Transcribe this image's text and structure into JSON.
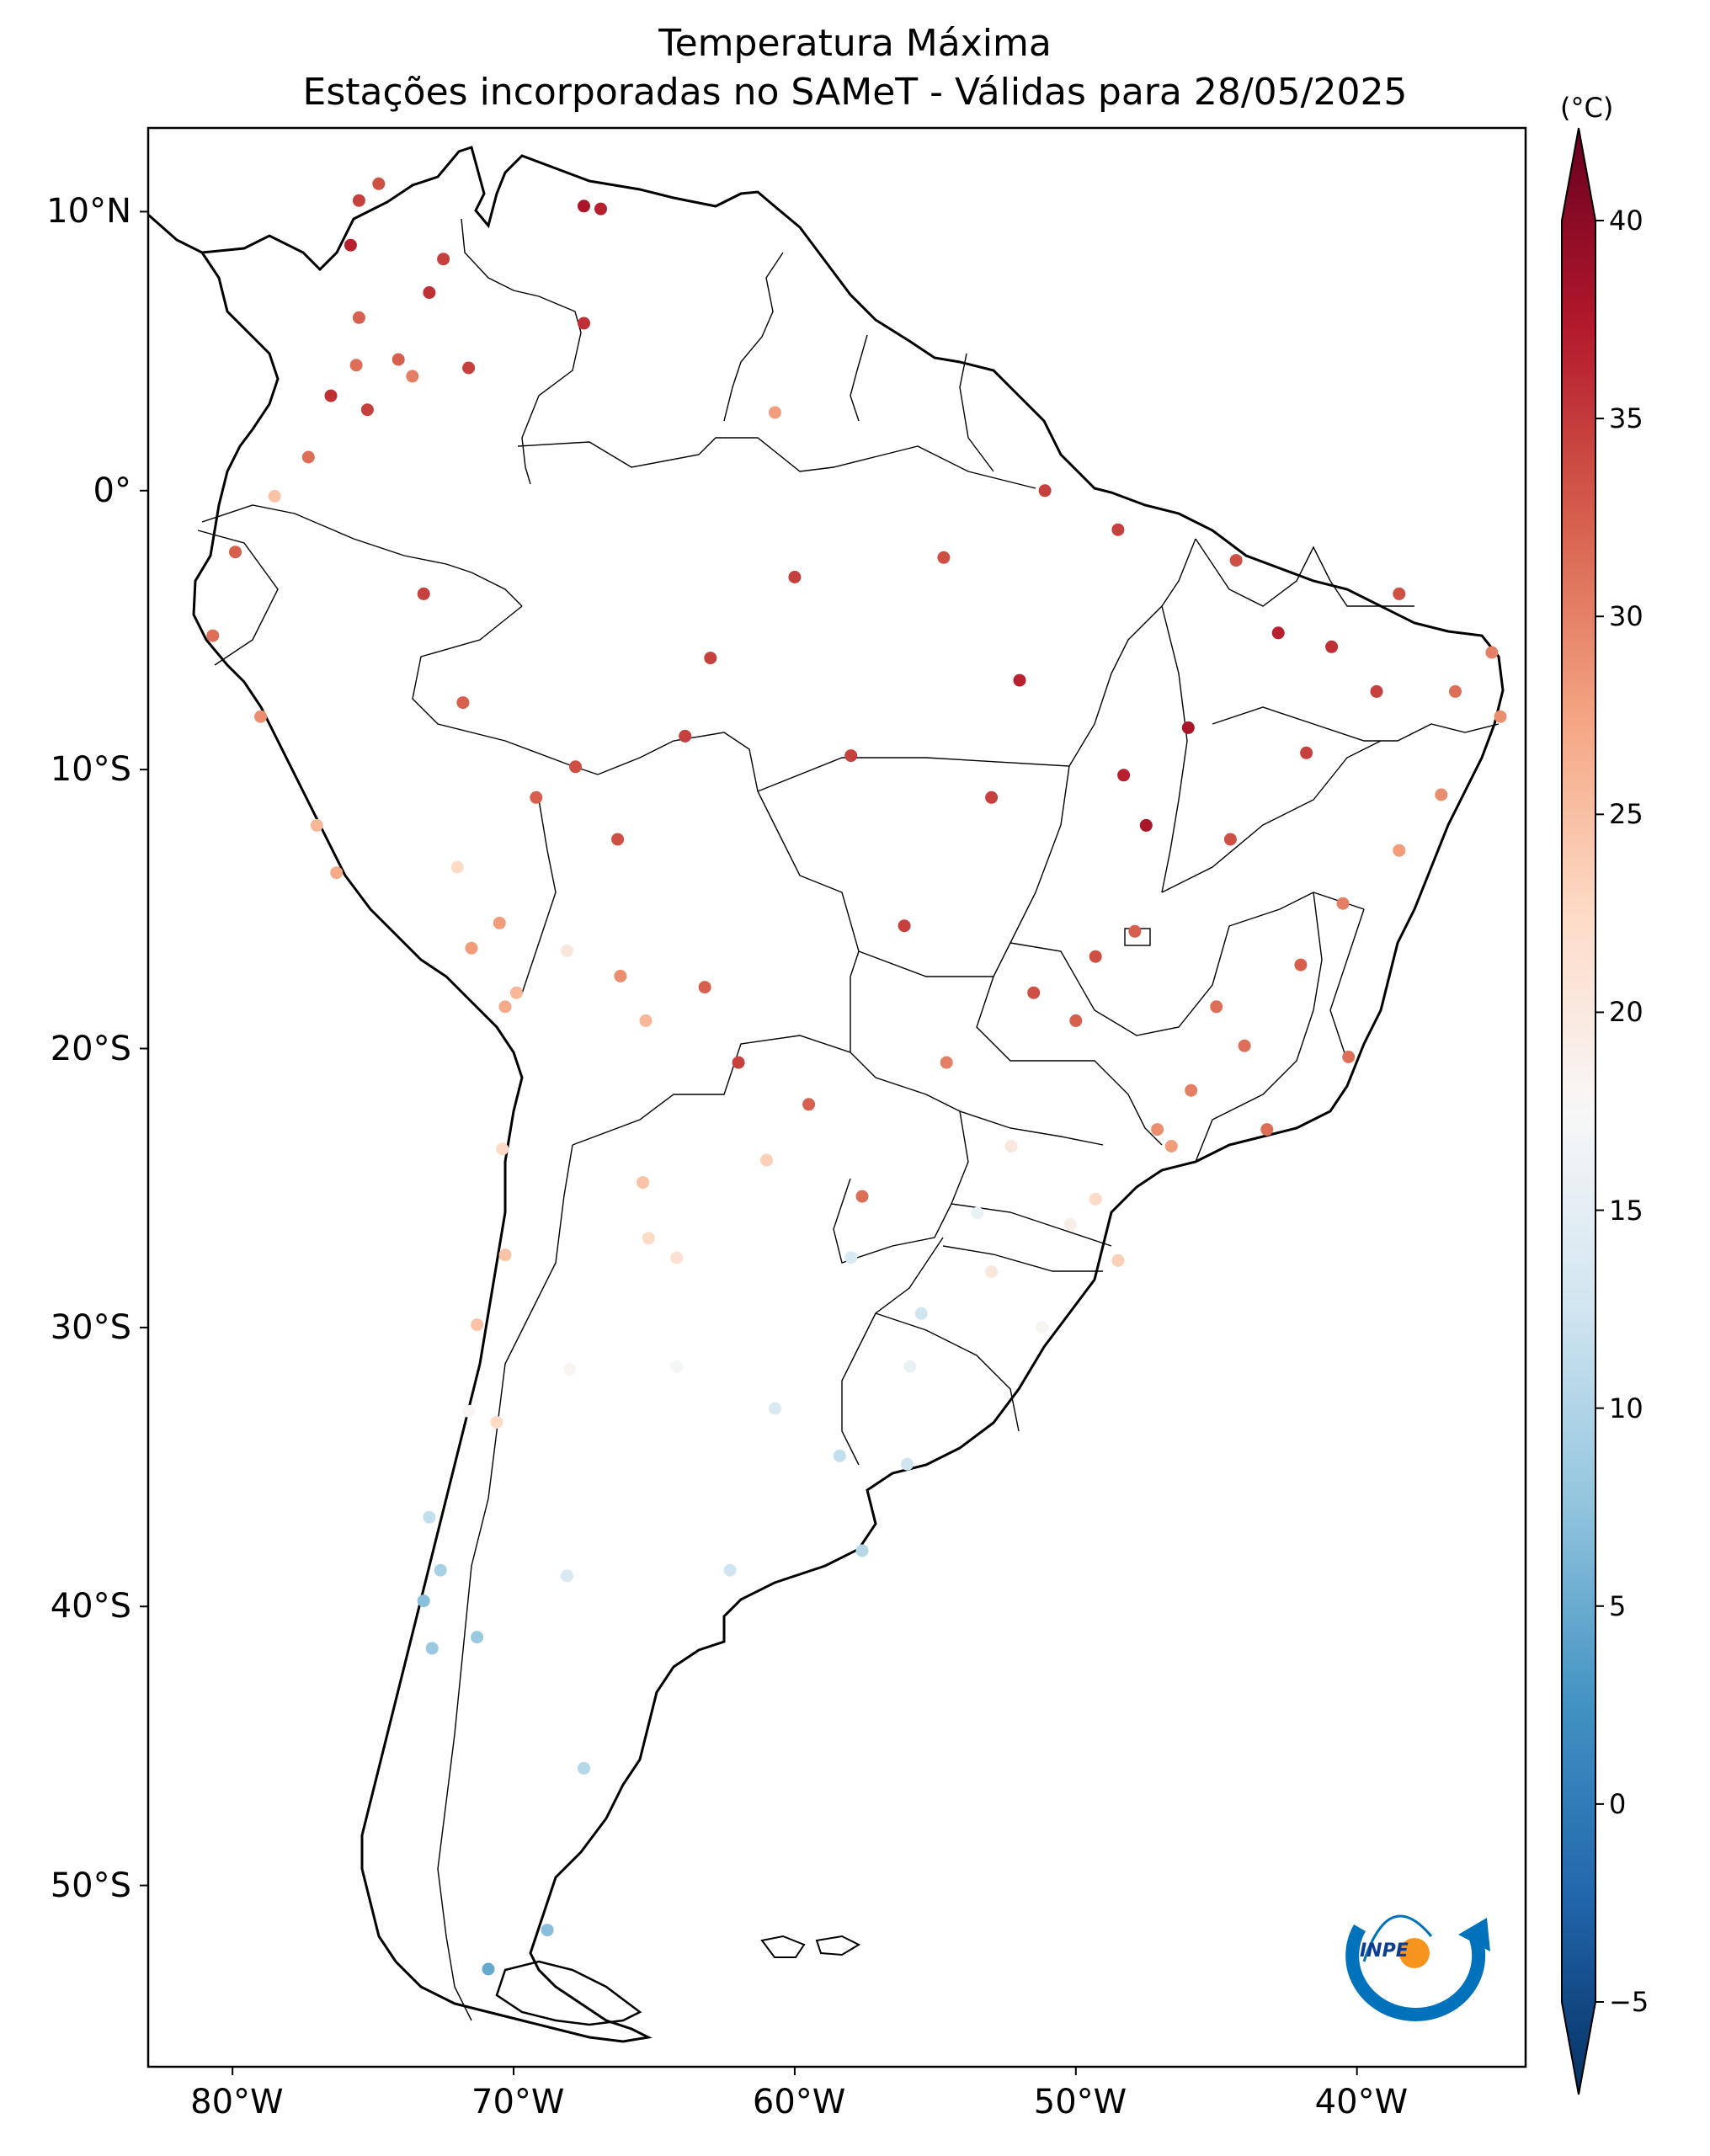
{
  "title": {
    "line1": "Temperatura Máxima",
    "line2": "Estações incorporadas no SAMeT - Válidas para 28/05/2025"
  },
  "map": {
    "lon_range": [
      -83,
      -34
    ],
    "lat_range": [
      -56.5,
      13
    ],
    "lon_ticks": [
      {
        "value": -80,
        "label": "80°W"
      },
      {
        "value": -70,
        "label": "70°W"
      },
      {
        "value": -60,
        "label": "60°W"
      },
      {
        "value": -50,
        "label": "50°W"
      },
      {
        "value": -40,
        "label": "40°W"
      }
    ],
    "lat_ticks": [
      {
        "value": 10,
        "label": "10°N"
      },
      {
        "value": 0,
        "label": "0°"
      },
      {
        "value": -10,
        "label": "10°S"
      },
      {
        "value": -20,
        "label": "20°S"
      },
      {
        "value": -30,
        "label": "30°S"
      },
      {
        "value": -40,
        "label": "40°S"
      },
      {
        "value": -50,
        "label": "50°S"
      }
    ]
  },
  "colorbar": {
    "unit": "(°C)",
    "min": -5,
    "max": 40,
    "ticks": [
      {
        "value": 40,
        "label": "40"
      },
      {
        "value": 35,
        "label": "35"
      },
      {
        "value": 30,
        "label": "30"
      },
      {
        "value": 25,
        "label": "25"
      },
      {
        "value": 20,
        "label": "20"
      },
      {
        "value": 15,
        "label": "15"
      },
      {
        "value": 10,
        "label": "10"
      },
      {
        "value": 5,
        "label": "5"
      },
      {
        "value": 0,
        "label": "0"
      },
      {
        "value": -5,
        "label": "-5"
      }
    ],
    "colors": [
      "#053061",
      "#2166ac",
      "#4393c3",
      "#92c5de",
      "#d1e5f0",
      "#f7f7f7",
      "#fddbc7",
      "#f4a582",
      "#d6604d",
      "#b2182b",
      "#67001f"
    ]
  },
  "logo": {
    "text": "INPE"
  },
  "stations": [
    {
      "lon": -75.5,
      "lat": 10.4,
      "t": 33
    },
    {
      "lon": -74.8,
      "lat": 11.0,
      "t": 32
    },
    {
      "lon": -67.5,
      "lat": 10.2,
      "t": 36
    },
    {
      "lon": -66.9,
      "lat": 10.1,
      "t": 35
    },
    {
      "lon": -72.5,
      "lat": 8.3,
      "t": 33
    },
    {
      "lon": -75.8,
      "lat": 8.8,
      "t": 35
    },
    {
      "lon": -73.0,
      "lat": 7.1,
      "t": 34
    },
    {
      "lon": -74.1,
      "lat": 4.7,
      "t": 31
    },
    {
      "lon": -75.5,
      "lat": 6.2,
      "t": 31
    },
    {
      "lon": -75.6,
      "lat": 4.5,
      "t": 30
    },
    {
      "lon": -73.6,
      "lat": 4.1,
      "t": 29
    },
    {
      "lon": -75.2,
      "lat": 2.9,
      "t": 33
    },
    {
      "lon": -76.5,
      "lat": 3.4,
      "t": 34
    },
    {
      "lon": -71.6,
      "lat": 4.4,
      "t": 33
    },
    {
      "lon": -67.5,
      "lat": 6.0,
      "t": 34
    },
    {
      "lon": -77.3,
      "lat": 1.2,
      "t": 30
    },
    {
      "lon": -78.5,
      "lat": -0.2,
      "t": 24
    },
    {
      "lon": -79.9,
      "lat": -2.2,
      "t": 31
    },
    {
      "lon": -80.7,
      "lat": -5.2,
      "t": 30
    },
    {
      "lon": -79.0,
      "lat": -8.1,
      "t": 28
    },
    {
      "lon": -77.0,
      "lat": -12.0,
      "t": 25
    },
    {
      "lon": -76.3,
      "lat": -13.7,
      "t": 26
    },
    {
      "lon": -73.2,
      "lat": -3.7,
      "t": 33
    },
    {
      "lon": -71.5,
      "lat": -16.4,
      "t": 27
    },
    {
      "lon": -70.3,
      "lat": -18.5,
      "t": 26
    },
    {
      "lon": -69.9,
      "lat": -18.0,
      "t": 25
    },
    {
      "lon": -72.0,
      "lat": -13.5,
      "t": 22
    },
    {
      "lon": -70.5,
      "lat": -15.5,
      "t": 27
    },
    {
      "lon": -68.1,
      "lat": -16.5,
      "t": 20
    },
    {
      "lon": -66.2,
      "lat": -17.4,
      "t": 28
    },
    {
      "lon": -63.2,
      "lat": -17.8,
      "t": 31
    },
    {
      "lon": -65.3,
      "lat": -19.0,
      "t": 25
    },
    {
      "lon": -65.4,
      "lat": -24.8,
      "t": 24
    },
    {
      "lon": -64.2,
      "lat": -27.5,
      "t": 21
    },
    {
      "lon": -65.2,
      "lat": -26.8,
      "t": 22
    },
    {
      "lon": -68.0,
      "lat": -31.5,
      "t": 18
    },
    {
      "lon": -64.2,
      "lat": -31.4,
      "t": 17
    },
    {
      "lon": -60.7,
      "lat": -32.9,
      "t": 14
    },
    {
      "lon": -58.4,
      "lat": -34.6,
      "t": 12
    },
    {
      "lon": -57.6,
      "lat": -38.0,
      "t": 11
    },
    {
      "lon": -62.3,
      "lat": -38.7,
      "t": 13
    },
    {
      "lon": -68.1,
      "lat": -38.9,
      "t": 14
    },
    {
      "lon": -71.3,
      "lat": -41.1,
      "t": 9
    },
    {
      "lon": -67.5,
      "lat": -45.8,
      "t": 11
    },
    {
      "lon": -68.8,
      "lat": -51.6,
      "t": 8
    },
    {
      "lon": -70.9,
      "lat": -53.0,
      "t": 6
    },
    {
      "lon": -70.6,
      "lat": -33.4,
      "t": 22
    },
    {
      "lon": -71.6,
      "lat": -33.0,
      "t": 18
    },
    {
      "lon": -73.0,
      "lat": -36.8,
      "t": 12
    },
    {
      "lon": -72.6,
      "lat": -38.7,
      "t": 10
    },
    {
      "lon": -73.2,
      "lat": -39.8,
      "t": 8
    },
    {
      "lon": -72.9,
      "lat": -41.5,
      "t": 9
    },
    {
      "lon": -71.3,
      "lat": -29.9,
      "t": 24
    },
    {
      "lon": -70.3,
      "lat": -27.4,
      "t": 24
    },
    {
      "lon": -70.4,
      "lat": -23.6,
      "t": 22
    },
    {
      "lon": -60.0,
      "lat": -3.1,
      "t": 33
    },
    {
      "lon": -63.9,
      "lat": -8.8,
      "t": 33
    },
    {
      "lon": -67.8,
      "lat": -9.9,
      "t": 32
    },
    {
      "lon": -54.7,
      "lat": -2.4,
      "t": 32
    },
    {
      "lon": -48.5,
      "lat": -1.4,
      "t": 33
    },
    {
      "lon": -60.7,
      "lat": 2.8,
      "t": 27
    },
    {
      "lon": -51.1,
      "lat": 0.0,
      "t": 33
    },
    {
      "lon": -44.3,
      "lat": -2.5,
      "t": 32
    },
    {
      "lon": -38.5,
      "lat": -3.7,
      "t": 32
    },
    {
      "lon": -35.2,
      "lat": -5.8,
      "t": 29
    },
    {
      "lon": -34.9,
      "lat": -8.1,
      "t": 28
    },
    {
      "lon": -38.5,
      "lat": -12.9,
      "t": 27
    },
    {
      "lon": -40.3,
      "lat": -20.3,
      "t": 30
    },
    {
      "lon": -43.2,
      "lat": -22.9,
      "t": 30
    },
    {
      "lon": -46.6,
      "lat": -23.5,
      "t": 27
    },
    {
      "lon": -49.3,
      "lat": -25.4,
      "t": 22
    },
    {
      "lon": -48.5,
      "lat": -27.6,
      "t": 23
    },
    {
      "lon": -51.2,
      "lat": -30.0,
      "t": 18
    },
    {
      "lon": -47.9,
      "lat": -15.8,
      "t": 31
    },
    {
      "lon": -49.3,
      "lat": -16.7,
      "t": 32
    },
    {
      "lon": -56.1,
      "lat": -15.6,
      "t": 33
    },
    {
      "lon": -54.6,
      "lat": -20.5,
      "t": 29
    },
    {
      "lon": -44.0,
      "lat": -19.9,
      "t": 30
    },
    {
      "lon": -48.3,
      "lat": -10.2,
      "t": 35
    },
    {
      "lon": -42.8,
      "lat": -5.1,
      "t": 35
    },
    {
      "lon": -41.8,
      "lat": -9.4,
      "t": 33
    },
    {
      "lon": -57.6,
      "lat": -25.3,
      "t": 30
    },
    {
      "lon": -56.0,
      "lat": -34.9,
      "t": 13
    },
    {
      "lon": -55.9,
      "lat": -31.4,
      "t": 16
    },
    {
      "lon": -53.0,
      "lat": -28.0,
      "t": 20
    },
    {
      "lon": -47.1,
      "lat": -22.9,
      "t": 28
    },
    {
      "lon": -45.9,
      "lat": -21.5,
      "t": 29
    },
    {
      "lon": -52.3,
      "lat": -23.5,
      "t": 20
    },
    {
      "lon": -53.5,
      "lat": -25.9,
      "t": 16
    },
    {
      "lon": -50.2,
      "lat": -26.3,
      "t": 19
    },
    {
      "lon": -55.5,
      "lat": -29.5,
      "t": 13
    },
    {
      "lon": -58.0,
      "lat": -27.5,
      "t": 14
    },
    {
      "lon": -61.0,
      "lat": -24.0,
      "t": 23
    },
    {
      "lon": -59.5,
      "lat": -22.0,
      "t": 31
    },
    {
      "lon": -62.0,
      "lat": -20.5,
      "t": 33
    },
    {
      "lon": -66.3,
      "lat": -12.5,
      "t": 32
    },
    {
      "lon": -69.2,
      "lat": -11.0,
      "t": 31
    },
    {
      "lon": -71.8,
      "lat": -7.6,
      "t": 31
    },
    {
      "lon": -63.0,
      "lat": -6.0,
      "t": 33
    },
    {
      "lon": -58.0,
      "lat": -9.5,
      "t": 33
    },
    {
      "lon": -53.0,
      "lat": -11.0,
      "t": 33
    },
    {
      "lon": -52.0,
      "lat": -6.8,
      "t": 35
    },
    {
      "lon": -46.0,
      "lat": -8.5,
      "t": 36
    },
    {
      "lon": -47.5,
      "lat": -12.0,
      "t": 36
    },
    {
      "lon": -44.5,
      "lat": -12.5,
      "t": 32
    },
    {
      "lon": -40.5,
      "lat": -14.8,
      "t": 29
    },
    {
      "lon": -42.0,
      "lat": -17.0,
      "t": 31
    },
    {
      "lon": -45.0,
      "lat": -18.5,
      "t": 30
    },
    {
      "lon": -50.0,
      "lat": -19.0,
      "t": 31
    },
    {
      "lon": -51.5,
      "lat": -18.0,
      "t": 32
    },
    {
      "lon": -37.0,
      "lat": -10.9,
      "t": 28
    },
    {
      "lon": -36.5,
      "lat": -7.2,
      "t": 30
    },
    {
      "lon": -39.3,
      "lat": -7.2,
      "t": 33
    },
    {
      "lon": -40.9,
      "lat": -5.6,
      "t": 34
    }
  ]
}
